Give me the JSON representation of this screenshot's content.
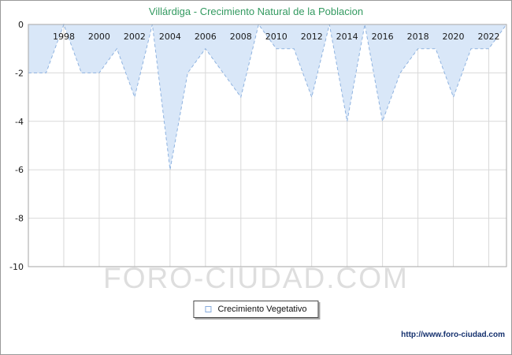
{
  "page": {
    "title": "Villárdiga - Crecimiento Natural de la Poblacion",
    "title_color": "#339a60",
    "watermark": "FORO-CIUDAD.COM",
    "footer_url": "http://www.foro-ciudad.com"
  },
  "legend": {
    "label": "Crecimiento Vegetativo",
    "swatch_border_color": "#86abdc",
    "swatch_fill_color": "#ffffff"
  },
  "chart_data": {
    "type": "area",
    "title": "Villárdiga - Crecimiento Natural de la Poblacion",
    "series": [
      {
        "name": "Crecimiento Vegetativo",
        "x": [
          1996,
          1997,
          1998,
          1999,
          2000,
          2001,
          2002,
          2003,
          2004,
          2005,
          2006,
          2007,
          2008,
          2009,
          2010,
          2011,
          2012,
          2013,
          2014,
          2015,
          2016,
          2017,
          2018,
          2019,
          2020,
          2021,
          2022,
          2023
        ],
        "values": [
          -2,
          -2,
          0,
          -2,
          -2,
          -1,
          -3,
          0,
          -6,
          -2,
          -1,
          -2,
          -3,
          0,
          -1,
          -1,
          -3,
          0,
          -4,
          0,
          -4,
          -2,
          -1,
          -1,
          -3,
          -1,
          -1,
          0
        ]
      }
    ],
    "xlim": [
      1996,
      2023
    ],
    "ylim": [
      -10,
      0
    ],
    "x_ticks": [
      1998,
      2000,
      2002,
      2004,
      2006,
      2008,
      2010,
      2012,
      2014,
      2016,
      2018,
      2020,
      2022
    ],
    "y_ticks": [
      0,
      -2,
      -4,
      -6,
      -8,
      -10
    ],
    "grid": true,
    "legend_position": "bottom",
    "xlabel": "",
    "ylabel": "",
    "colors": {
      "area_fill": "#d9e7f8",
      "line": "#8fb3e0",
      "grid": "#d9d9d9",
      "plot_border": "#a6a6a6",
      "tick_text": "#1a1a1a"
    }
  }
}
